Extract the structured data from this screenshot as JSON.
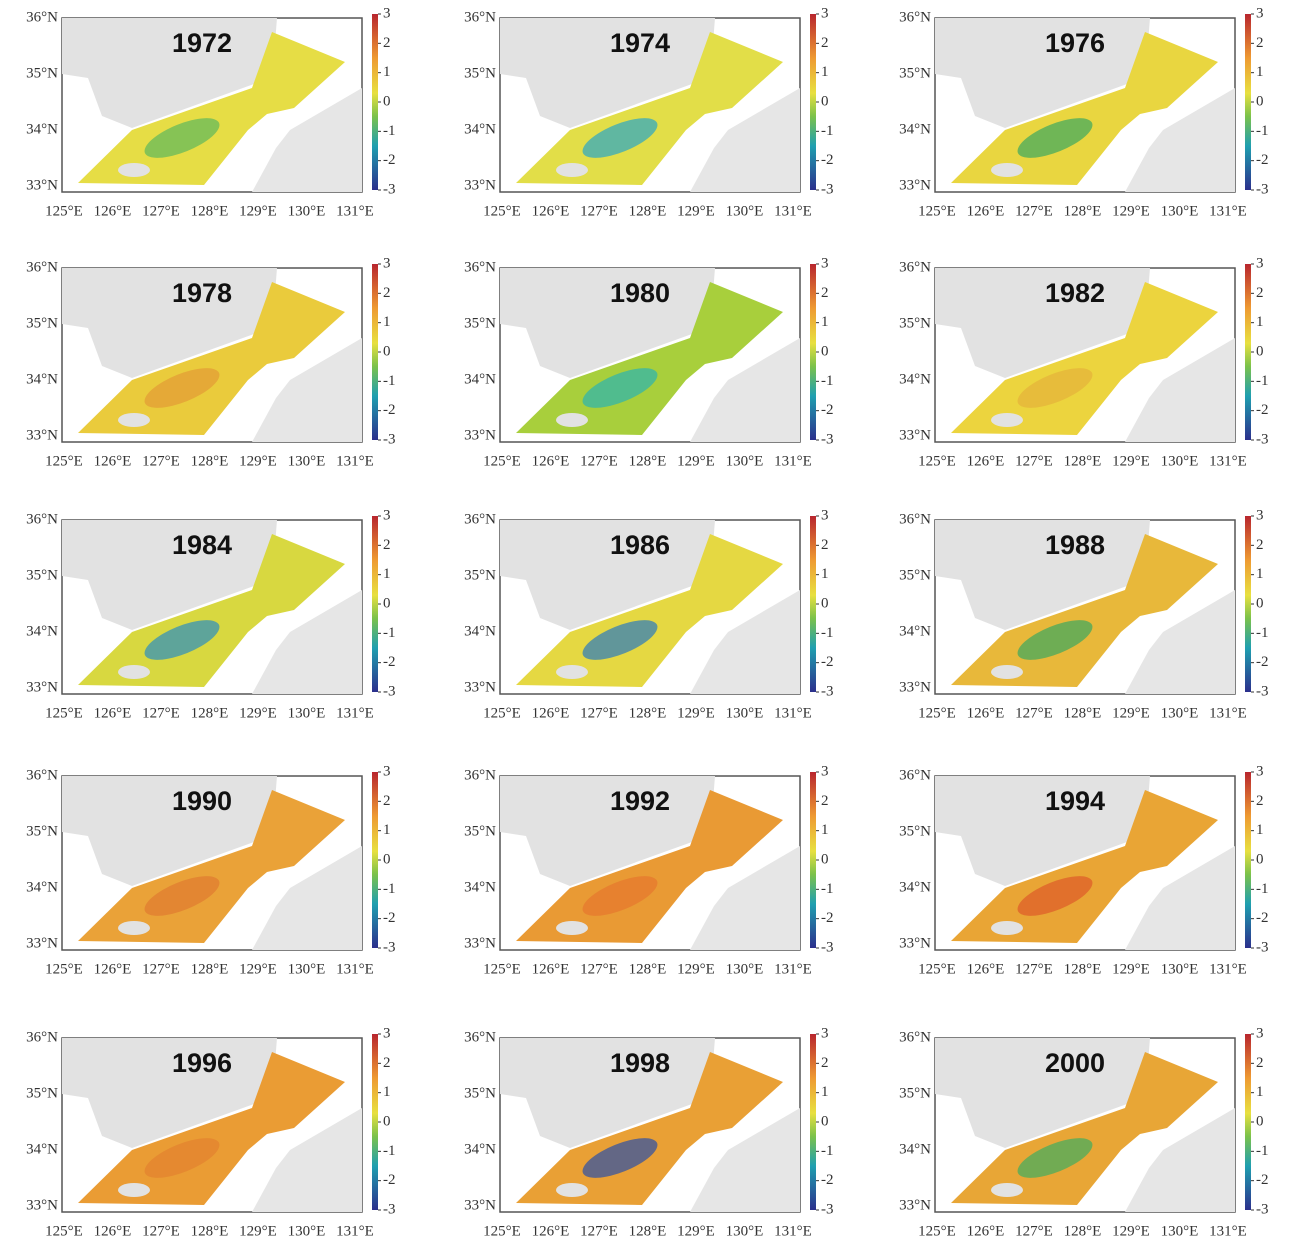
{
  "lat_labels": [
    "36°N",
    "35°N",
    "34°N",
    "33°N"
  ],
  "lon_labels": [
    "125°E",
    "126°E",
    "127°E",
    "128°E",
    "129°E",
    "130°E",
    "131°E"
  ],
  "colorbar_ticks": [
    3,
    2,
    1,
    0,
    -1,
    -2,
    -3
  ],
  "panels": [
    {
      "title": "1972",
      "fill": "#e6dd45",
      "accent": "#5cb85c"
    },
    {
      "title": "1974",
      "fill": "#e2de48",
      "accent": "#2aa6c8"
    },
    {
      "title": "1976",
      "fill": "#e9d640",
      "accent": "#3aa860"
    },
    {
      "title": "1978",
      "fill": "#eacb3c",
      "accent": "#e29a35"
    },
    {
      "title": "1980",
      "fill": "#a8cf3c",
      "accent": "#2bb3b0"
    },
    {
      "title": "1982",
      "fill": "#ecd43e",
      "accent": "#e6b23a"
    },
    {
      "title": "1984",
      "fill": "#d8d840",
      "accent": "#2b8fc0"
    },
    {
      "title": "1986",
      "fill": "#e5d842",
      "accent": "#2a7ac0"
    },
    {
      "title": "1988",
      "fill": "#e8b83a",
      "accent": "#3aa860"
    },
    {
      "title": "1990",
      "fill": "#eaa238",
      "accent": "#e07a30"
    },
    {
      "title": "1992",
      "fill": "#e99a34",
      "accent": "#e5762d"
    },
    {
      "title": "1994",
      "fill": "#e9a535",
      "accent": "#dd5a2a"
    },
    {
      "title": "1996",
      "fill": "#ea9c34",
      "accent": "#e2812f"
    },
    {
      "title": "1998",
      "fill": "#e9a035",
      "accent": "#2a4fa8"
    },
    {
      "title": "2000",
      "fill": "#e8a636",
      "accent": "#3fae60"
    }
  ]
}
